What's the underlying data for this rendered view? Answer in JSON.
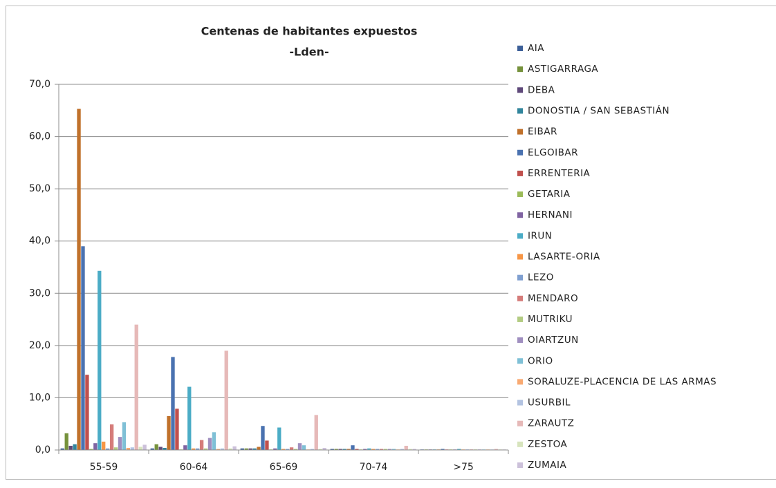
{
  "chart_data": {
    "type": "bar",
    "title": "Centenas de habitantes expuestos",
    "subtitle": "-Lden-",
    "categories": [
      "55-59",
      "60-64",
      "65-69",
      "70-74",
      ">75"
    ],
    "ylim": [
      0,
      70
    ],
    "yticks": [
      {
        "value": 0,
        "label": "0,0"
      },
      {
        "value": 10,
        "label": "10,0"
      },
      {
        "value": 20,
        "label": "20,0"
      },
      {
        "value": 30,
        "label": "30,0"
      },
      {
        "value": 40,
        "label": "40,0"
      },
      {
        "value": 50,
        "label": "50,0"
      },
      {
        "value": 60,
        "label": "60,0"
      },
      {
        "value": 70,
        "label": "70,0"
      }
    ],
    "grid": true,
    "legend": "right",
    "series": [
      {
        "name": "AIA",
        "color": "#3c5f98",
        "values": [
          0.3,
          0.3,
          0.3,
          0.2,
          0.1
        ]
      },
      {
        "name": "ASTIGARRAGA",
        "color": "#76923c",
        "values": [
          3.2,
          1.1,
          0.3,
          0.2,
          0.1
        ]
      },
      {
        "name": "DEBA",
        "color": "#5f497a",
        "values": [
          0.8,
          0.6,
          0.3,
          0.2,
          0.1
        ]
      },
      {
        "name": "DONOSTIA / SAN SEBASTIÁN",
        "color": "#31859c",
        "values": [
          1.1,
          0.4,
          0.3,
          0.2,
          0.1
        ]
      },
      {
        "name": "EIBAR",
        "color": "#c0712b",
        "values": [
          65.3,
          6.5,
          0.6,
          0.2,
          0.1
        ]
      },
      {
        "name": "ELGOIBAR",
        "color": "#4a72b0",
        "values": [
          39.0,
          17.8,
          4.6,
          0.9,
          0.2
        ]
      },
      {
        "name": "ERRENTERIA",
        "color": "#c0504d",
        "values": [
          14.4,
          7.9,
          1.8,
          0.2,
          0.1
        ]
      },
      {
        "name": "GETARIA",
        "color": "#9bbb59",
        "values": [
          0.2,
          0.1,
          0.1,
          0.1,
          0.1
        ]
      },
      {
        "name": "HERNANI",
        "color": "#8064a2",
        "values": [
          1.3,
          0.9,
          0.3,
          0.2,
          0.1
        ]
      },
      {
        "name": "IRUN",
        "color": "#4bacc6",
        "values": [
          34.3,
          12.1,
          4.3,
          0.3,
          0.2
        ]
      },
      {
        "name": "LASARTE-ORIA",
        "color": "#f79646",
        "values": [
          1.6,
          0.3,
          0.2,
          0.2,
          0.1
        ]
      },
      {
        "name": "LEZO",
        "color": "#7f9fd0",
        "values": [
          0.3,
          0.3,
          0.2,
          0.2,
          0.1
        ]
      },
      {
        "name": "MENDARO",
        "color": "#d57c7a",
        "values": [
          4.9,
          1.9,
          0.5,
          0.2,
          0.1
        ]
      },
      {
        "name": "MUTRIKU",
        "color": "#b3cc82",
        "values": [
          0.5,
          0.3,
          0.2,
          0.2,
          0.1
        ]
      },
      {
        "name": "OIARTZUN",
        "color": "#a08fc0",
        "values": [
          2.5,
          2.3,
          1.3,
          0.2,
          0.1
        ]
      },
      {
        "name": "ORIO",
        "color": "#7fc0d6",
        "values": [
          5.3,
          3.4,
          0.9,
          0.2,
          0.1
        ]
      },
      {
        "name": "SORALUZE-PLACENCIA DE LAS ARMAS",
        "color": "#f9aa72",
        "values": [
          0.4,
          0.2,
          0.1,
          0.1,
          0.1
        ]
      },
      {
        "name": "USURBIL",
        "color": "#b3c3e1",
        "values": [
          0.5,
          0.3,
          0.2,
          0.2,
          0.1
        ]
      },
      {
        "name": "ZARAUTZ",
        "color": "#e6b9b8",
        "values": [
          24.0,
          19.0,
          6.7,
          0.8,
          0.2
        ]
      },
      {
        "name": "ZESTOA",
        "color": "#d7e4bd",
        "values": [
          0.6,
          0.3,
          0.2,
          0.2,
          0.1
        ]
      },
      {
        "name": "ZUMAIA",
        "color": "#ccc1da",
        "values": [
          1.0,
          0.7,
          0.4,
          0.2,
          0.1
        ]
      }
    ]
  }
}
